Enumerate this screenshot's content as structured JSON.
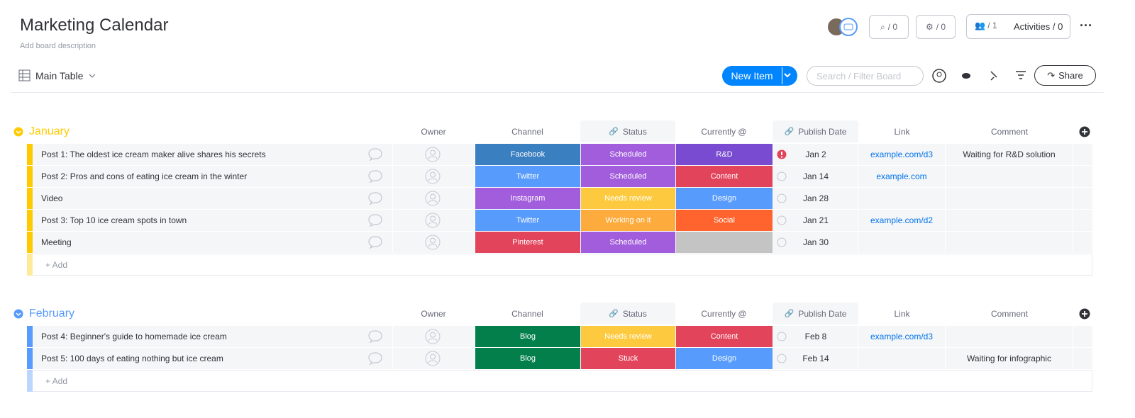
{
  "header": {
    "title": "Marketing Calendar",
    "description": "Add board description",
    "view": "Main Table",
    "updates_count": "/ 0",
    "integrations_count": "/ 0",
    "members_count": "/ 1",
    "activities": "Activities / 0",
    "new_item": "New Item",
    "search_placeholder": "Search / Filter Board",
    "share": "Share"
  },
  "groups": [
    {
      "name": "January",
      "color": "#ffcb00",
      "columns": [
        "Owner",
        "Channel",
        "Status",
        "Currently @",
        "Publish Date",
        "Link",
        "Comment"
      ],
      "rows": [
        {
          "name": "Post 1: The oldest ice cream maker alive shares his secrets",
          "channel": {
            "text": "Facebook",
            "color": "#3a7fbf"
          },
          "status": {
            "text": "Scheduled",
            "color": "#a25ddc"
          },
          "currently": {
            "text": "R&D",
            "color": "#784bd1"
          },
          "date": "Jan 2",
          "alert": true,
          "link": "example.com/d3",
          "comment": "Waiting for R&D solution"
        },
        {
          "name": "Post 2: Pros and cons of eating ice cream in the winter",
          "channel": {
            "text": "Twitter",
            "color": "#579bfc"
          },
          "status": {
            "text": "Scheduled",
            "color": "#a25ddc"
          },
          "currently": {
            "text": "Content",
            "color": "#e2445c"
          },
          "date": "Jan 14",
          "alert": false,
          "link": "example.com",
          "comment": null
        },
        {
          "name": "Video",
          "channel": {
            "text": "Instagram",
            "color": "#a25ddc"
          },
          "status": {
            "text": "Needs review",
            "color": "#fdca3f"
          },
          "currently": {
            "text": "Design",
            "color": "#579bfc"
          },
          "date": "Jan 28",
          "alert": false,
          "link": null,
          "comment": null
        },
        {
          "name": "Post 3: Top 10 ice cream spots in town",
          "channel": {
            "text": "Twitter",
            "color": "#579bfc"
          },
          "status": {
            "text": "Working on it",
            "color": "#fdab3d"
          },
          "currently": {
            "text": "Social",
            "color": "#ff642e"
          },
          "date": "Jan 21",
          "alert": false,
          "link": "example.com/d2",
          "comment": null
        },
        {
          "name": "Meeting",
          "channel": {
            "text": "Pinterest",
            "color": "#e2445c"
          },
          "status": {
            "text": "Scheduled",
            "color": "#a25ddc"
          },
          "currently": {
            "text": null,
            "color": "#c4c4c4"
          },
          "date": "Jan 30",
          "alert": false,
          "link": null,
          "comment": null
        }
      ],
      "add": "+ Add"
    },
    {
      "name": "February",
      "color": "#579bfc",
      "columns": [
        "Owner",
        "Channel",
        "Status",
        "Currently @",
        "Publish Date",
        "Link",
        "Comment"
      ],
      "rows": [
        {
          "name": "Post 4: Beginner's guide to homemade ice cream",
          "channel": {
            "text": "Blog",
            "color": "#037f4c"
          },
          "status": {
            "text": "Needs review",
            "color": "#fdca3f"
          },
          "currently": {
            "text": "Content",
            "color": "#e2445c"
          },
          "date": "Feb 8",
          "alert": false,
          "link": "example.com/d3",
          "comment": null
        },
        {
          "name": "Post 5: 100 days of eating nothing but ice cream",
          "channel": {
            "text": "Blog",
            "color": "#037f4c"
          },
          "status": {
            "text": "Stuck",
            "color": "#e2445c"
          },
          "currently": {
            "text": "Design",
            "color": "#579bfc"
          },
          "date": "Feb 14",
          "alert": false,
          "link": null,
          "comment": "Waiting for infographic"
        }
      ],
      "add": "+ Add"
    }
  ]
}
